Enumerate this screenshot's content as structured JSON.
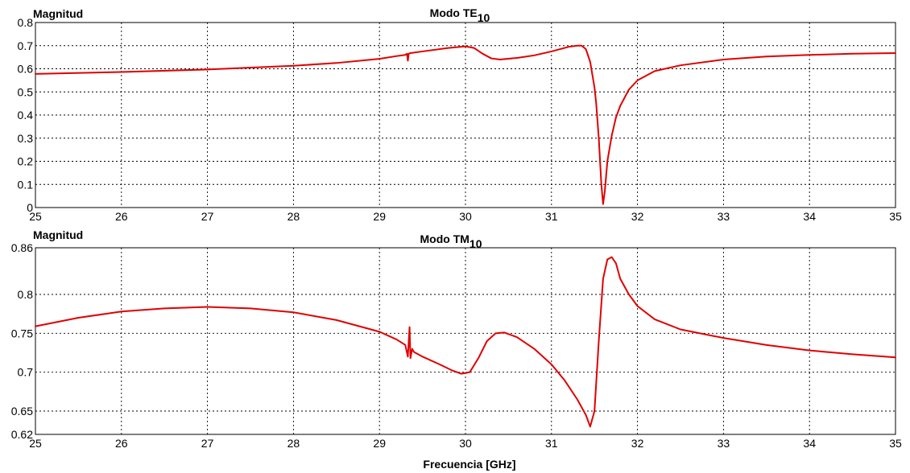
{
  "chart_data": [
    {
      "type": "line",
      "title": "Modo TE",
      "title_subscript": "10",
      "ylabel": "Magnitud",
      "xlabel": "",
      "xlim": [
        25,
        35
      ],
      "ylim": [
        0,
        0.8
      ],
      "xticks": [
        "25",
        "26",
        "27",
        "28",
        "29",
        "30",
        "31",
        "32",
        "33",
        "34",
        "35"
      ],
      "yticks": [
        "0",
        "0.1",
        "0.2",
        "0.3",
        "0.4",
        "0.5",
        "0.6",
        "0.7",
        "0.8"
      ],
      "ytick_values": [
        0,
        0.1,
        0.2,
        0.3,
        0.4,
        0.5,
        0.6,
        0.7,
        0.8
      ],
      "grid": true,
      "color": "#e00000",
      "series": [
        {
          "x": [
            25,
            26,
            27,
            28,
            28.5,
            29,
            29.2,
            29.3,
            29.32,
            29.33,
            29.34,
            29.36,
            29.5,
            29.8,
            30,
            30.1,
            30.2,
            30.3,
            30.4,
            30.6,
            30.8,
            31,
            31.1,
            31.2,
            31.3,
            31.35,
            31.4,
            31.45,
            31.5,
            31.52,
            31.55,
            31.58,
            31.6,
            31.62,
            31.65,
            31.7,
            31.75,
            31.8,
            31.9,
            32,
            32.2,
            32.5,
            33,
            33.5,
            34,
            34.5,
            35
          ],
          "y": [
            0.578,
            0.586,
            0.597,
            0.613,
            0.625,
            0.643,
            0.655,
            0.66,
            0.665,
            0.635,
            0.665,
            0.668,
            0.675,
            0.69,
            0.697,
            0.69,
            0.665,
            0.645,
            0.64,
            0.647,
            0.658,
            0.675,
            0.685,
            0.695,
            0.7,
            0.7,
            0.685,
            0.63,
            0.52,
            0.45,
            0.3,
            0.1,
            0.015,
            0.07,
            0.2,
            0.31,
            0.39,
            0.44,
            0.51,
            0.55,
            0.59,
            0.615,
            0.64,
            0.653,
            0.66,
            0.665,
            0.668
          ]
        }
      ]
    },
    {
      "type": "line",
      "title": "Modo TM",
      "title_subscript": "10",
      "ylabel": "Magnitud",
      "xlabel": "Frecuencia [GHz]",
      "xlim": [
        25,
        35
      ],
      "ylim": [
        0.62,
        0.86
      ],
      "xticks": [
        "25",
        "26",
        "27",
        "28",
        "29",
        "30",
        "31",
        "32",
        "33",
        "34",
        "35"
      ],
      "yticks": [
        "0.62",
        "0.65",
        "0.7",
        "0.75",
        "0.8",
        "0.86"
      ],
      "ytick_values": [
        0.62,
        0.65,
        0.7,
        0.75,
        0.8,
        0.86
      ],
      "grid": true,
      "color": "#e00000",
      "series": [
        {
          "x": [
            25,
            25.5,
            26,
            26.5,
            27,
            27.5,
            28,
            28.5,
            29,
            29.2,
            29.3,
            29.33,
            29.35,
            29.36,
            29.38,
            29.4,
            29.5,
            29.7,
            29.85,
            29.95,
            30.05,
            30.15,
            30.25,
            30.35,
            30.45,
            30.6,
            30.8,
            31,
            31.15,
            31.3,
            31.4,
            31.45,
            31.5,
            31.55,
            31.6,
            31.65,
            31.7,
            31.75,
            31.8,
            31.9,
            32,
            32.2,
            32.5,
            33,
            33.5,
            34,
            34.5,
            35
          ],
          "y": [
            0.759,
            0.77,
            0.778,
            0.782,
            0.784,
            0.782,
            0.777,
            0.767,
            0.752,
            0.742,
            0.735,
            0.72,
            0.758,
            0.718,
            0.73,
            0.726,
            0.72,
            0.71,
            0.702,
            0.698,
            0.7,
            0.718,
            0.74,
            0.75,
            0.751,
            0.745,
            0.73,
            0.71,
            0.69,
            0.665,
            0.645,
            0.63,
            0.65,
            0.74,
            0.82,
            0.845,
            0.848,
            0.84,
            0.82,
            0.8,
            0.785,
            0.768,
            0.755,
            0.744,
            0.735,
            0.728,
            0.723,
            0.719
          ]
        }
      ]
    }
  ]
}
